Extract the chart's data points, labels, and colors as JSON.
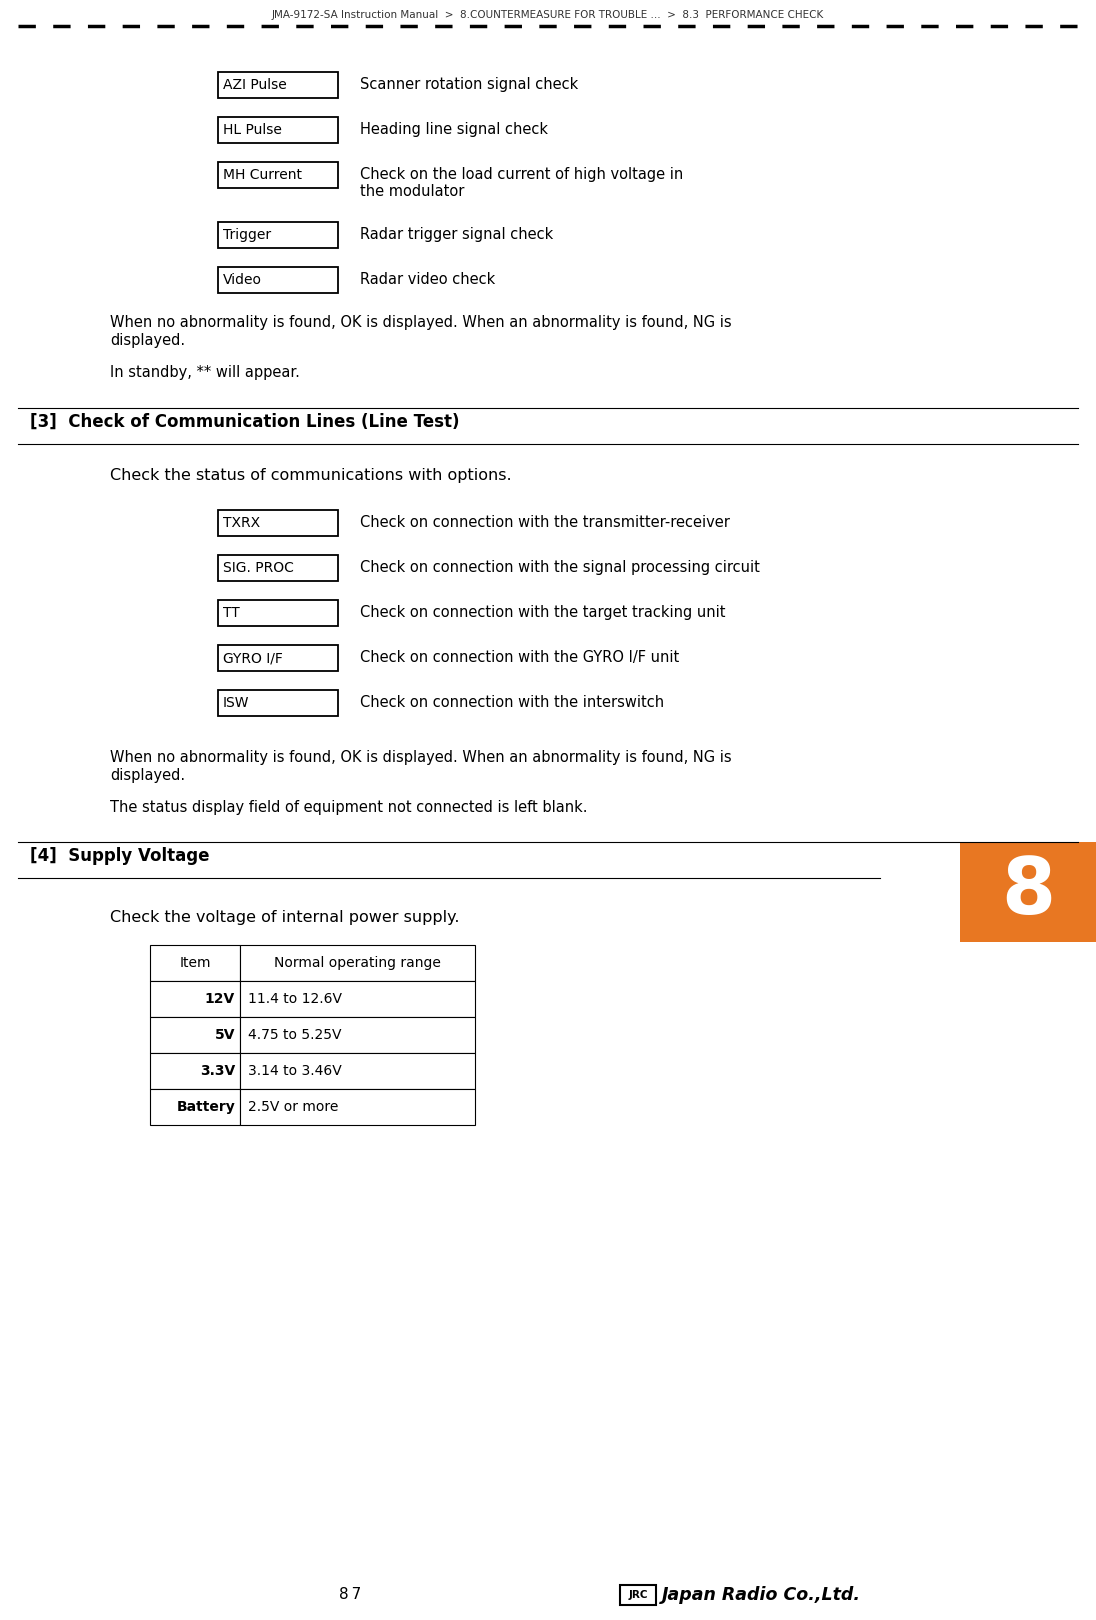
{
  "header_text": "JMA-9172-SA Instruction Manual  >  8.COUNTERMEASURE FOR TROUBLE ...  >  8.3  PERFORMANCE CHECK",
  "bg_color": "#ffffff",
  "text_color": "#000000",
  "section3_header": "[3]  Check of Communication Lines (Line Test)",
  "section3_intro": "Check the status of communications with options.",
  "section3_note1": "When no abnormality is found, OK is displayed. When an abnormality is found, NG is\ndisplayed.",
  "section3_note2": "The status display field of equipment not connected is left blank.",
  "section4_header": "[4]  Supply Voltage",
  "section4_intro": "Check the voltage of internal power supply.",
  "top_boxes": [
    {
      "label": "AZI Pulse",
      "desc": "Scanner rotation signal check",
      "multiline": false
    },
    {
      "label": "HL Pulse",
      "desc": "Heading line signal check",
      "multiline": false
    },
    {
      "label": "MH Current",
      "desc": "Check on the load current of high voltage in\nthe modulator",
      "multiline": true
    },
    {
      "label": "Trigger",
      "desc": "Radar trigger signal check",
      "multiline": false
    },
    {
      "label": "Video",
      "desc": "Radar video check",
      "multiline": false
    }
  ],
  "top_note1": "When no abnormality is found, OK is displayed. When an abnormality is found, NG is\ndisplayed.",
  "top_note2": "In standby, ** will appear.",
  "comm_boxes": [
    {
      "label": "TXRX",
      "desc": "Check on connection with the transmitter-receiver"
    },
    {
      "label": "SIG. PROC",
      "desc": "Check on connection with the signal processing circuit"
    },
    {
      "label": "TT",
      "desc": "Check on connection with the target tracking unit"
    },
    {
      "label": "GYRO I/F",
      "desc": "Check on connection with the GYRO I/F unit"
    },
    {
      "label": "ISW",
      "desc": "Check on connection with the interswitch"
    }
  ],
  "table_headers": [
    "Item",
    "Normal operating range"
  ],
  "table_rows": [
    [
      "12V",
      "11.4 to 12.6V"
    ],
    [
      "5V",
      "4.75 to 5.25V"
    ],
    [
      "3.3V",
      "3.14 to 3.46V"
    ],
    [
      "Battery",
      "2.5V or more"
    ]
  ],
  "section_num_box": "8",
  "badge_color": "#e87722",
  "dashed_line_color": "#000000",
  "box_border_color": "#000000",
  "box_fill_color": "#ffffff"
}
